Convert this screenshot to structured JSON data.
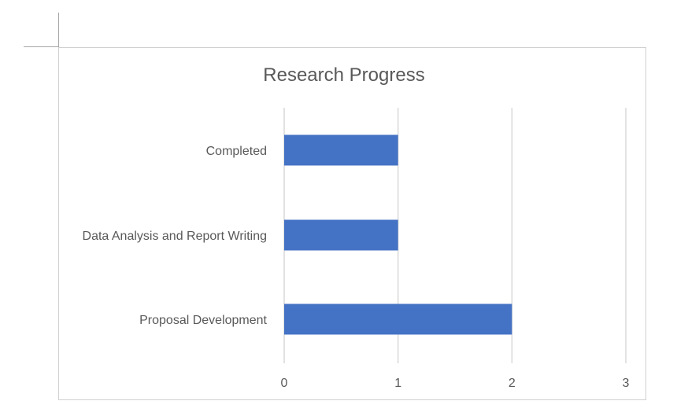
{
  "chart_data": {
    "type": "bar",
    "orientation": "horizontal",
    "title": "Research Progress",
    "xlabel": "",
    "ylabel": "",
    "categories": [
      "Completed",
      "Data Analysis and Report Writing",
      "Proposal Development"
    ],
    "values": [
      1,
      1,
      2
    ],
    "xlim": [
      0,
      3
    ],
    "x_ticks": [
      0,
      1,
      2,
      3
    ],
    "grid": "vertical",
    "legend": "none",
    "bar_color": "#4472c4",
    "grid_color": "#d9d9d9"
  }
}
